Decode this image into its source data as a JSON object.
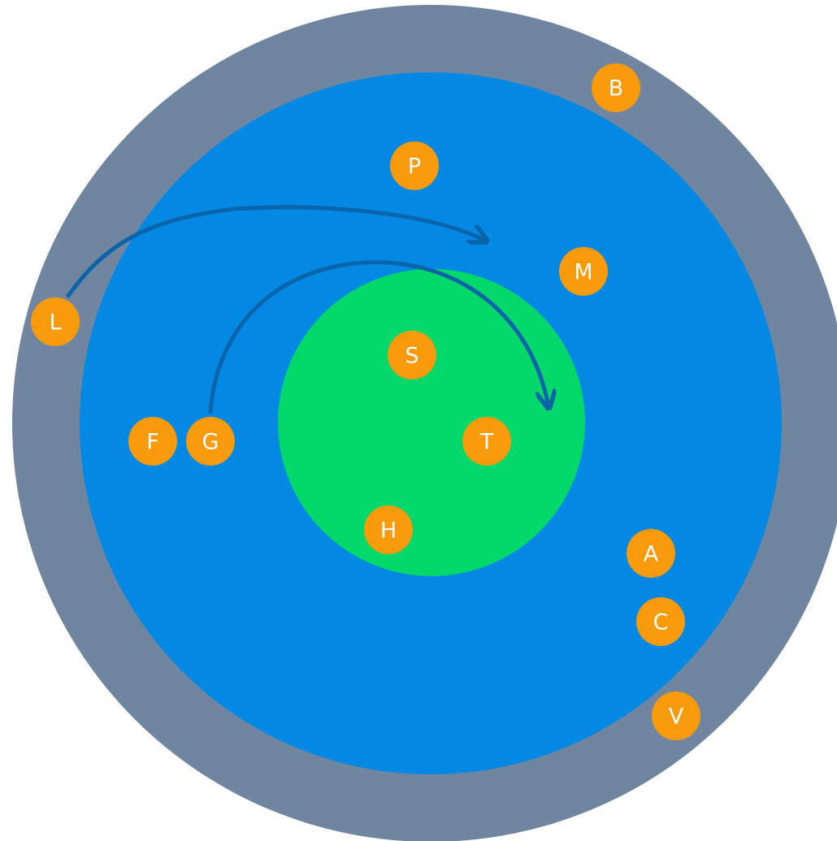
{
  "colors": {
    "outer_ring": "#7086a0",
    "middle_disc": "#0388e4",
    "inner_disc": "#02d96a",
    "node_fill": "#f79a0c",
    "node_text": "#ffffff",
    "arrow": "#0a64aa"
  },
  "nodes": [
    {
      "id": "B",
      "label": "B"
    },
    {
      "id": "P",
      "label": "P"
    },
    {
      "id": "M",
      "label": "M"
    },
    {
      "id": "L",
      "label": "L"
    },
    {
      "id": "S",
      "label": "S"
    },
    {
      "id": "F",
      "label": "F"
    },
    {
      "id": "G",
      "label": "G"
    },
    {
      "id": "T",
      "label": "T"
    },
    {
      "id": "H",
      "label": "H"
    },
    {
      "id": "A",
      "label": "A"
    },
    {
      "id": "C",
      "label": "C"
    },
    {
      "id": "V",
      "label": "V"
    }
  ],
  "arrows": [
    {
      "from": "L"
    },
    {
      "from": "G"
    }
  ]
}
